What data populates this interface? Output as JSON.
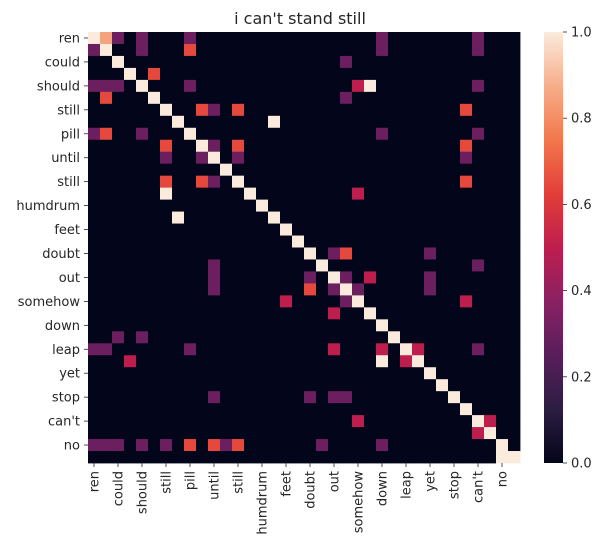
{
  "chart_data": {
    "type": "heatmap",
    "title": "i can't stand still",
    "row_labels": [
      "ren",
      "could",
      "should",
      "still",
      "pill",
      "until",
      "still",
      "humdrum",
      "feet",
      "doubt",
      "out",
      "somehow",
      "down",
      "leap",
      "yet",
      "stop",
      "can't",
      "no"
    ],
    "col_labels": [
      "ren",
      "could",
      "should",
      "still",
      "pill",
      "until",
      "still",
      "humdrum",
      "feet",
      "doubt",
      "out",
      "somehow",
      "down",
      "leap",
      "yet",
      "stop",
      "can't",
      "no"
    ],
    "n": 36,
    "row_label_positions": [
      0,
      2,
      4,
      6,
      8,
      10,
      12,
      14,
      16,
      18,
      20,
      22,
      24,
      26,
      28,
      30,
      32,
      34
    ],
    "col_label_positions": [
      0,
      2,
      4,
      6,
      8,
      10,
      12,
      14,
      16,
      18,
      20,
      22,
      24,
      26,
      28,
      30,
      32,
      34
    ],
    "values": [
      [
        1.0,
        0.85,
        0.3,
        0,
        0.3,
        0,
        0,
        0,
        0.3,
        0,
        0,
        0,
        0,
        0,
        0,
        0,
        0,
        0,
        0,
        0,
        0,
        0,
        0,
        0,
        0.3,
        0,
        0,
        0,
        0,
        0,
        0,
        0,
        0.3,
        0,
        0,
        0
      ],
      [
        0.3,
        1.0,
        0,
        0,
        0.3,
        0,
        0,
        0,
        0.65,
        0,
        0,
        0,
        0,
        0,
        0,
        0,
        0,
        0,
        0,
        0,
        0,
        0,
        0,
        0,
        0.3,
        0,
        0,
        0,
        0,
        0,
        0,
        0,
        0.3,
        0,
        0,
        0
      ],
      [
        0,
        0,
        1.0,
        0,
        0,
        0,
        0,
        0,
        0,
        0,
        0,
        0,
        0,
        0,
        0,
        0,
        0,
        0,
        0,
        0,
        0,
        0.3,
        0,
        0,
        0,
        0,
        0,
        0,
        0,
        0,
        0,
        0,
        0,
        0,
        0,
        0
      ],
      [
        0,
        0,
        0,
        1.0,
        0,
        0.65,
        0,
        0,
        0,
        0,
        0,
        0,
        0,
        0,
        0,
        0,
        0,
        0,
        0,
        0,
        0,
        0,
        0,
        0,
        0,
        0,
        0,
        0,
        0,
        0,
        0,
        0,
        0,
        0,
        0,
        0
      ],
      [
        0.3,
        0.3,
        0.3,
        0,
        1.0,
        0,
        0,
        0,
        0.3,
        0,
        0,
        0,
        0,
        0,
        0,
        0,
        0,
        0,
        0,
        0,
        0,
        0,
        0.5,
        1.0,
        0,
        0,
        0,
        0,
        0,
        0,
        0,
        0,
        0.3,
        0,
        0,
        0
      ],
      [
        0,
        0.65,
        0,
        0,
        0,
        1.0,
        0,
        0,
        0,
        0,
        0,
        0,
        0,
        0,
        0,
        0,
        0,
        0,
        0,
        0,
        0,
        0.3,
        0,
        0,
        0,
        0,
        0,
        0,
        0,
        0,
        0,
        0,
        0,
        0,
        0,
        0
      ],
      [
        0,
        0,
        0,
        0,
        0,
        0,
        1.0,
        0,
        0,
        0.65,
        0.3,
        0,
        0.65,
        0,
        0,
        0,
        0,
        0,
        0,
        0,
        0,
        0,
        0,
        0,
        0,
        0,
        0,
        0,
        0,
        0,
        0,
        0.65,
        0,
        0,
        0,
        0
      ],
      [
        0,
        0,
        0,
        0,
        0,
        0,
        0,
        1.0,
        0,
        0,
        0,
        0,
        0,
        0,
        0,
        1.0,
        0,
        0,
        0,
        0,
        0,
        0,
        0,
        0,
        0,
        0,
        0,
        0,
        0,
        0,
        0,
        0,
        0,
        0,
        0,
        0
      ],
      [
        0.3,
        0.65,
        0,
        0,
        0.3,
        0,
        0,
        0,
        1.0,
        0,
        0,
        0,
        0,
        0,
        0,
        0,
        0,
        0,
        0,
        0,
        0,
        0,
        0,
        0,
        0.3,
        0,
        0,
        0,
        0,
        0,
        0,
        0,
        0.3,
        0,
        0,
        0
      ],
      [
        0,
        0,
        0,
        0,
        0,
        0,
        0.65,
        0,
        0,
        1.0,
        0.3,
        0,
        0.65,
        0,
        0,
        0,
        0,
        0,
        0,
        0,
        0,
        0,
        0,
        0,
        0,
        0,
        0,
        0,
        0,
        0,
        0,
        0.65,
        0,
        0,
        0,
        0
      ],
      [
        0,
        0,
        0,
        0,
        0,
        0,
        0.3,
        0,
        0,
        0.3,
        1.0,
        0,
        0.3,
        0,
        0,
        0,
        0,
        0,
        0,
        0,
        0,
        0,
        0,
        0,
        0,
        0,
        0,
        0,
        0,
        0,
        0,
        0.3,
        0,
        0,
        0,
        0
      ],
      [
        0,
        0,
        0,
        0,
        0,
        0,
        0,
        0,
        0,
        0,
        0,
        1.0,
        0,
        0,
        0,
        0,
        0,
        0,
        0,
        0,
        0,
        0,
        0,
        0,
        0,
        0,
        0,
        0,
        0,
        0,
        0,
        0,
        0,
        0,
        0,
        0
      ],
      [
        0,
        0,
        0,
        0,
        0,
        0,
        0.65,
        0,
        0,
        0.65,
        0.3,
        0,
        1.0,
        0,
        0,
        0,
        0,
        0,
        0,
        0,
        0,
        0,
        0,
        0,
        0,
        0,
        0,
        0,
        0,
        0,
        0,
        0.65,
        0,
        0,
        0,
        0
      ],
      [
        0,
        0,
        0,
        0,
        0,
        0,
        1.0,
        0,
        0,
        0,
        0,
        0,
        0,
        1.0,
        0,
        0,
        0,
        0,
        0,
        0,
        0,
        0,
        0.5,
        0,
        0,
        0,
        0,
        0,
        0,
        0,
        0,
        0,
        0,
        0,
        0,
        0
      ],
      [
        0,
        0,
        0,
        0,
        0,
        0,
        0,
        0,
        0,
        0,
        0,
        0,
        0,
        0,
        1.0,
        0,
        0,
        0,
        0,
        0,
        0,
        0,
        0,
        0,
        0,
        0,
        0,
        0,
        0,
        0,
        0,
        0,
        0,
        0,
        0,
        0
      ],
      [
        0,
        0,
        0,
        0,
        0,
        0,
        0,
        1.0,
        0,
        0,
        0,
        0,
        0,
        0,
        0,
        1.0,
        0,
        0,
        0,
        0,
        0,
        0,
        0,
        0,
        0,
        0,
        0,
        0,
        0,
        0,
        0,
        0,
        0,
        0,
        0,
        0
      ],
      [
        0,
        0,
        0,
        0,
        0,
        0,
        0,
        0,
        0,
        0,
        0,
        0,
        0,
        0,
        0,
        0,
        1.0,
        0,
        0,
        0,
        0,
        0,
        0,
        0,
        0,
        0,
        0,
        0,
        0,
        0,
        0,
        0,
        0,
        0,
        0,
        0
      ],
      [
        0,
        0,
        0,
        0,
        0,
        0,
        0,
        0,
        0,
        0,
        0,
        0,
        0,
        0,
        0,
        0,
        0,
        1.0,
        0,
        0,
        0,
        0,
        0,
        0,
        0,
        0,
        0,
        0,
        0,
        0,
        0,
        0,
        0,
        0,
        0,
        0
      ],
      [
        0,
        0,
        0,
        0,
        0,
        0,
        0,
        0,
        0,
        0,
        0,
        0,
        0,
        0,
        0,
        0,
        0,
        0,
        1.0,
        0,
        0.3,
        0.65,
        0,
        0,
        0,
        0,
        0,
        0,
        0.3,
        0,
        0,
        0,
        0,
        0,
        0,
        0
      ],
      [
        0,
        0,
        0,
        0,
        0,
        0,
        0,
        0,
        0,
        0,
        0.3,
        0,
        0,
        0,
        0,
        0,
        0,
        0,
        0,
        1.0,
        0,
        0,
        0,
        0,
        0,
        0,
        0,
        0,
        0,
        0,
        0,
        0,
        0.3,
        0,
        0,
        0
      ],
      [
        0,
        0,
        0,
        0,
        0,
        0,
        0,
        0,
        0,
        0,
        0.3,
        0,
        0,
        0,
        0,
        0,
        0,
        0,
        0.3,
        0,
        1.0,
        0.3,
        0,
        0.5,
        0,
        0,
        0,
        0,
        0.3,
        0,
        0,
        0,
        0,
        0,
        0,
        0
      ],
      [
        0,
        0,
        0,
        0,
        0,
        0,
        0,
        0,
        0,
        0,
        0.3,
        0,
        0,
        0,
        0,
        0,
        0,
        0,
        0.65,
        0,
        0.3,
        1.0,
        0.3,
        0,
        0,
        0,
        0,
        0,
        0.3,
        0,
        0,
        0,
        0,
        0,
        0,
        0
      ],
      [
        0,
        0,
        0,
        0,
        0,
        0,
        0,
        0,
        0,
        0,
        0,
        0,
        0,
        0,
        0,
        0,
        0.5,
        0,
        0,
        0,
        0,
        0.3,
        1.0,
        0,
        0,
        0,
        0,
        0,
        0,
        0,
        0,
        0.5,
        0,
        0,
        0,
        0
      ],
      [
        0,
        0,
        0,
        0,
        0,
        0,
        0,
        0,
        0,
        0,
        0,
        0,
        0,
        0,
        0,
        0,
        0,
        0,
        0,
        0,
        0.5,
        0,
        0,
        1.0,
        0,
        0,
        0,
        0,
        0,
        0,
        0,
        0,
        0,
        0,
        0,
        0
      ],
      [
        0,
        0,
        0,
        0,
        0,
        0,
        0,
        0,
        0,
        0,
        0,
        0,
        0,
        0,
        0,
        0,
        0,
        0,
        0,
        0,
        0,
        0,
        0,
        0,
        1.0,
        0,
        0,
        0,
        0,
        0,
        0,
        0,
        0,
        0,
        0,
        0
      ],
      [
        0,
        0,
        0.3,
        0,
        0.3,
        0,
        0,
        0,
        0,
        0,
        0,
        0,
        0,
        0,
        0,
        0,
        0,
        0,
        0,
        0,
        0,
        0,
        0,
        0,
        0,
        1.0,
        0,
        0,
        0,
        0,
        0,
        0,
        0,
        0,
        0,
        0
      ],
      [
        0.3,
        0.3,
        0,
        0,
        0,
        0,
        0,
        0,
        0.3,
        0,
        0,
        0,
        0,
        0,
        0,
        0,
        0,
        0,
        0,
        0,
        0.5,
        0,
        0,
        0,
        0.5,
        0,
        1.0,
        0.5,
        0,
        0,
        0,
        0,
        0.3,
        0,
        0,
        0
      ],
      [
        0,
        0,
        0,
        0.5,
        0,
        0,
        0,
        0,
        0,
        0,
        0,
        0,
        0,
        0,
        0,
        0,
        0,
        0,
        0,
        0,
        0,
        0,
        0,
        0,
        1.0,
        0,
        0.5,
        1.0,
        0,
        0,
        0,
        0,
        0,
        0,
        0,
        0
      ],
      [
        0,
        0,
        0,
        0,
        0,
        0,
        0,
        0,
        0,
        0,
        0,
        0,
        0,
        0,
        0,
        0,
        0,
        0,
        0,
        0,
        0,
        0,
        0,
        0,
        0,
        0,
        0,
        0,
        1.0,
        0,
        0,
        0,
        0,
        0,
        0,
        0
      ],
      [
        0,
        0,
        0,
        0,
        0,
        0,
        0,
        0,
        0,
        0,
        0,
        0,
        0,
        0,
        0,
        0,
        0,
        0,
        0,
        0,
        0,
        0,
        0,
        0,
        0,
        0,
        0,
        0,
        0,
        1.0,
        0,
        0,
        0,
        0,
        0,
        0
      ],
      [
        0,
        0,
        0,
        0,
        0,
        0,
        0,
        0,
        0,
        0,
        0.3,
        0,
        0,
        0,
        0,
        0,
        0,
        0,
        0.3,
        0,
        0.3,
        0.3,
        0,
        0,
        0,
        0,
        0,
        0,
        0,
        0,
        1.0,
        0,
        0,
        0,
        0,
        0
      ],
      [
        0,
        0,
        0,
        0,
        0,
        0,
        0,
        0,
        0,
        0,
        0,
        0,
        0,
        0,
        0,
        0,
        0,
        0,
        0,
        0,
        0,
        0,
        0,
        0,
        0,
        0,
        0,
        0,
        0,
        0,
        0,
        1.0,
        0,
        0,
        0,
        0
      ],
      [
        0,
        0,
        0,
        0,
        0,
        0,
        0,
        0,
        0,
        0,
        0,
        0,
        0,
        0,
        0,
        0,
        0,
        0,
        0,
        0,
        0,
        0,
        0.5,
        0,
        0,
        0,
        0,
        0,
        0,
        0,
        0,
        0,
        1.0,
        0.5,
        0,
        0
      ],
      [
        0,
        0,
        0,
        0,
        0,
        0,
        0,
        0,
        0,
        0,
        0,
        0,
        0,
        0,
        0,
        0,
        0,
        0,
        0,
        0,
        0,
        0,
        0,
        0,
        0,
        0,
        0,
        0,
        0,
        0,
        0,
        0,
        0.5,
        1.0,
        0,
        0
      ],
      [
        0.3,
        0.3,
        0.3,
        0,
        0.3,
        0,
        0.3,
        0,
        0.65,
        0,
        0.65,
        0.3,
        0.65,
        0,
        0,
        0,
        0,
        0,
        0,
        0.3,
        0,
        0,
        0,
        0,
        0.3,
        0,
        0,
        0,
        0,
        0,
        0,
        0,
        0,
        0,
        1.0,
        0
      ],
      [
        0,
        0,
        0,
        0,
        0,
        0,
        0,
        0,
        0,
        0,
        0,
        0,
        0,
        0,
        0,
        0,
        0,
        0,
        0,
        0,
        0,
        0,
        0,
        0,
        0,
        0,
        0,
        0,
        0,
        0,
        0,
        0,
        0,
        0,
        1.0,
        1.0
      ]
    ],
    "vmin": 0.0,
    "vmax": 1.0,
    "colormap": "rocket",
    "colorbar_ticks": [
      "0.0",
      "0.2",
      "0.4",
      "0.6",
      "0.8",
      "1.0"
    ],
    "colorbar_tick_values": [
      0.0,
      0.2,
      0.4,
      0.6,
      0.8,
      1.0
    ],
    "grid": false,
    "legend": "colorbar-right"
  }
}
